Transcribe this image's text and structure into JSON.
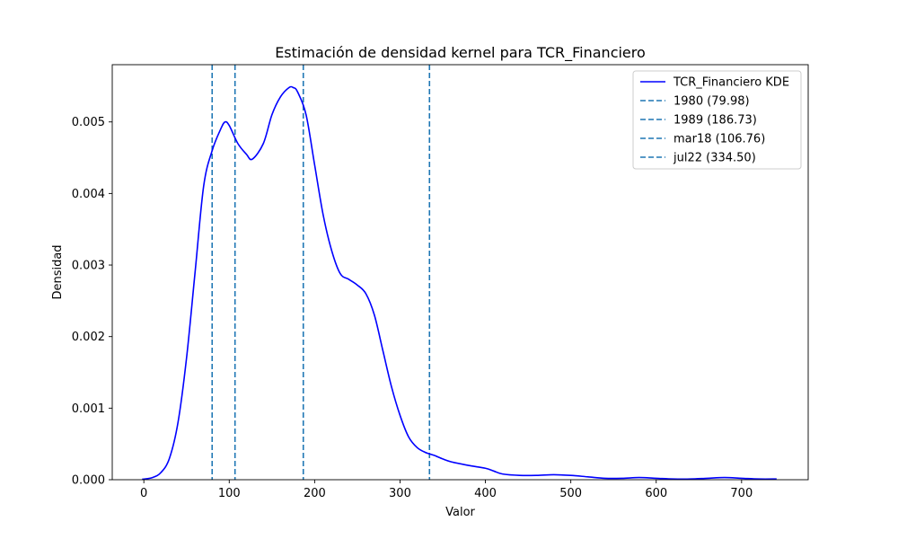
{
  "chart_data": {
    "type": "line",
    "title": "Estimación de densidad kernel para TCR_Financiero",
    "xlabel": "Valor",
    "ylabel": "Densidad",
    "xlim": [
      -37,
      778
    ],
    "ylim": [
      0,
      0.0058
    ],
    "xticks": [
      0,
      100,
      200,
      300,
      400,
      500,
      600,
      700
    ],
    "xtick_labels": [
      "0",
      "100",
      "200",
      "300",
      "400",
      "500",
      "600",
      "700"
    ],
    "yticks": [
      0,
      0.001,
      0.002,
      0.003,
      0.004,
      0.005
    ],
    "ytick_labels": [
      "0.000",
      "0.001",
      "0.002",
      "0.003",
      "0.004",
      "0.005"
    ],
    "grid": false,
    "legend_position": "top-right",
    "series": [
      {
        "name": "TCR_Financiero KDE",
        "color": "#0000ff",
        "style": "solid",
        "x": [
          -2,
          10,
          20,
          30,
          40,
          50,
          60,
          70,
          80,
          90,
          95,
          100,
          110,
          120,
          127,
          140,
          150,
          160,
          170,
          175,
          180,
          190,
          200,
          210,
          220,
          230,
          240,
          250,
          260,
          270,
          280,
          290,
          300,
          310,
          320,
          330,
          340,
          350,
          360,
          380,
          400,
          410,
          420,
          440,
          460,
          480,
          500,
          520,
          540,
          560,
          580,
          600,
          620,
          640,
          660,
          680,
          700,
          720,
          741
        ],
        "y": [
          5e-06,
          3e-05,
          0.0001,
          0.0003,
          0.0008,
          0.0017,
          0.0029,
          0.0041,
          0.0046,
          0.0049,
          0.005,
          0.00495,
          0.0047,
          0.00455,
          0.00448,
          0.0047,
          0.0051,
          0.00535,
          0.00548,
          0.00548,
          0.00542,
          0.0051,
          0.0044,
          0.0037,
          0.0032,
          0.00288,
          0.0028,
          0.00272,
          0.0026,
          0.0023,
          0.0018,
          0.0013,
          0.0009,
          0.0006,
          0.00045,
          0.00038,
          0.00034,
          0.00029,
          0.00025,
          0.0002,
          0.00016,
          0.00012,
          8e-05,
          6e-05,
          6e-05,
          7e-05,
          6e-05,
          4e-05,
          2e-05,
          2e-05,
          3e-05,
          2e-05,
          1e-05,
          1e-05,
          2e-05,
          3e-05,
          2e-05,
          1e-05,
          1e-05
        ]
      }
    ],
    "reference_lines": [
      {
        "name": "1980 (79.98)",
        "x": 79.98,
        "color": "#1f77b4",
        "style": "dashed"
      },
      {
        "name": "1989 (186.73)",
        "x": 186.73,
        "color": "#1f77b4",
        "style": "dashed"
      },
      {
        "name": "mar18 (106.76)",
        "x": 106.76,
        "color": "#1f77b4",
        "style": "dashed"
      },
      {
        "name": "jul22 (334.50)",
        "x": 334.5,
        "color": "#1f77b4",
        "style": "dashed"
      }
    ]
  }
}
